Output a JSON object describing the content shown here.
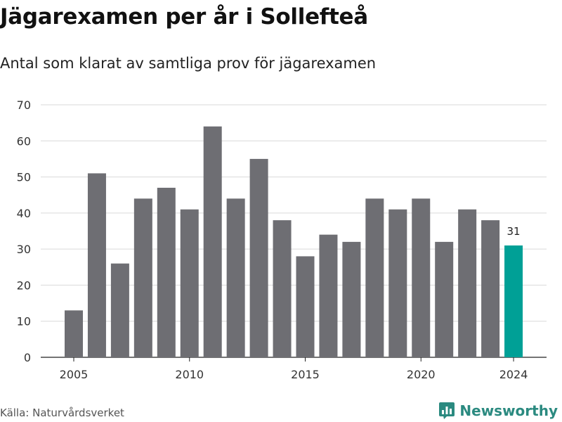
{
  "header": {
    "title": "Jägarexamen per år i Sollefteå",
    "subtitle": "Antal som klarat av samtliga prov för jägarexamen"
  },
  "footer": {
    "source": "Källa: Naturvårdsverket",
    "brand": "Newsworthy"
  },
  "colors": {
    "bar": "#6e6e73",
    "highlight": "#00a096",
    "grid": "#d9d9d9",
    "brand": "#2b8a80"
  },
  "chart_data": {
    "type": "bar",
    "title": "Jägarexamen per år i Sollefteå",
    "subtitle": "Antal som klarat av samtliga prov för jägarexamen",
    "x": [
      2005,
      2006,
      2007,
      2008,
      2009,
      2010,
      2011,
      2012,
      2013,
      2014,
      2015,
      2016,
      2017,
      2018,
      2019,
      2020,
      2021,
      2022,
      2023,
      2024
    ],
    "values": [
      13,
      51,
      26,
      44,
      47,
      41,
      64,
      44,
      55,
      38,
      28,
      34,
      32,
      44,
      41,
      44,
      32,
      41,
      38,
      31
    ],
    "highlight_index": 19,
    "highlight_label": "31",
    "x_ticks": [
      "2005",
      "2010",
      "2015",
      "2020",
      "2024"
    ],
    "y_ticks": [
      "0",
      "10",
      "20",
      "30",
      "40",
      "50",
      "60",
      "70"
    ],
    "ylim": [
      0,
      70
    ],
    "grid": true,
    "legend": "none"
  }
}
